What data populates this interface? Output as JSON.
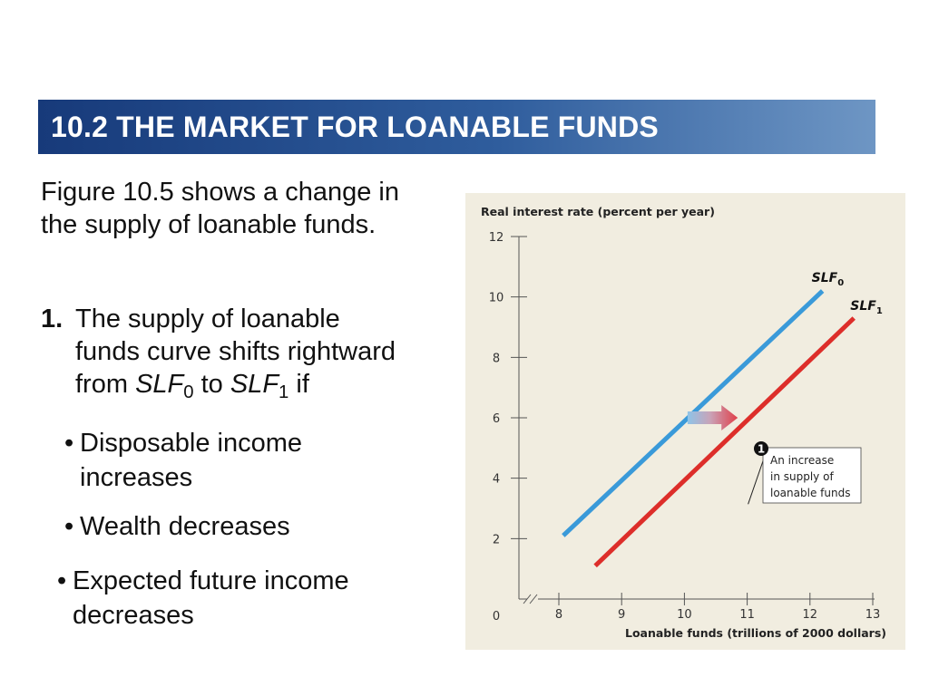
{
  "header": {
    "title": "10.2 THE MARKET FOR LOANABLE FUNDS"
  },
  "text": {
    "intro": "Figure 10.5 shows a change in the supply of loanable funds.",
    "point1": {
      "number": "1.",
      "line1": "The supply of loanable",
      "line2": "funds curve shifts rightward",
      "from": "from",
      "curve0_base": "SLF",
      "curve0_sub": "0",
      "to": "to",
      "curve1_base": "SLF",
      "curve1_sub": "1",
      "if": "if"
    },
    "bullets": [
      "Disposable income increases",
      "Wealth decreases",
      "Expected future income decreases"
    ],
    "bullet_glyph": "•"
  },
  "chart_data": {
    "type": "line",
    "ylabel": "Real interest rate (percent per year)",
    "xlabel": "Loanable funds (trillions of 2000 dollars)",
    "origin_label": "0",
    "x_ticks": [
      "8",
      "9",
      "10",
      "11",
      "12",
      "13"
    ],
    "y_ticks": [
      "2",
      "4",
      "6",
      "8",
      "10",
      "12"
    ],
    "xlim": [
      7.4,
      13
    ],
    "ylim": [
      0,
      12
    ],
    "x_axis_break": true,
    "grid": false,
    "series": [
      {
        "name": "SLF",
        "sub": "0",
        "color": "#3a9ad9",
        "x": [
          8.07,
          12.2
        ],
        "y": [
          2.1,
          10.2
        ]
      },
      {
        "name": "SLF",
        "sub": "1",
        "color": "#dd2e2a",
        "x": [
          8.58,
          12.7
        ],
        "y": [
          1.1,
          9.3
        ]
      }
    ],
    "shift_arrow": {
      "from": [
        10.05,
        6.0
      ],
      "to": [
        10.85,
        6.0
      ]
    },
    "annotation": {
      "marker": "1",
      "lines": [
        "An increase",
        "in supply of",
        "loanable funds"
      ],
      "point": [
        11.0,
        5.0
      ]
    }
  }
}
